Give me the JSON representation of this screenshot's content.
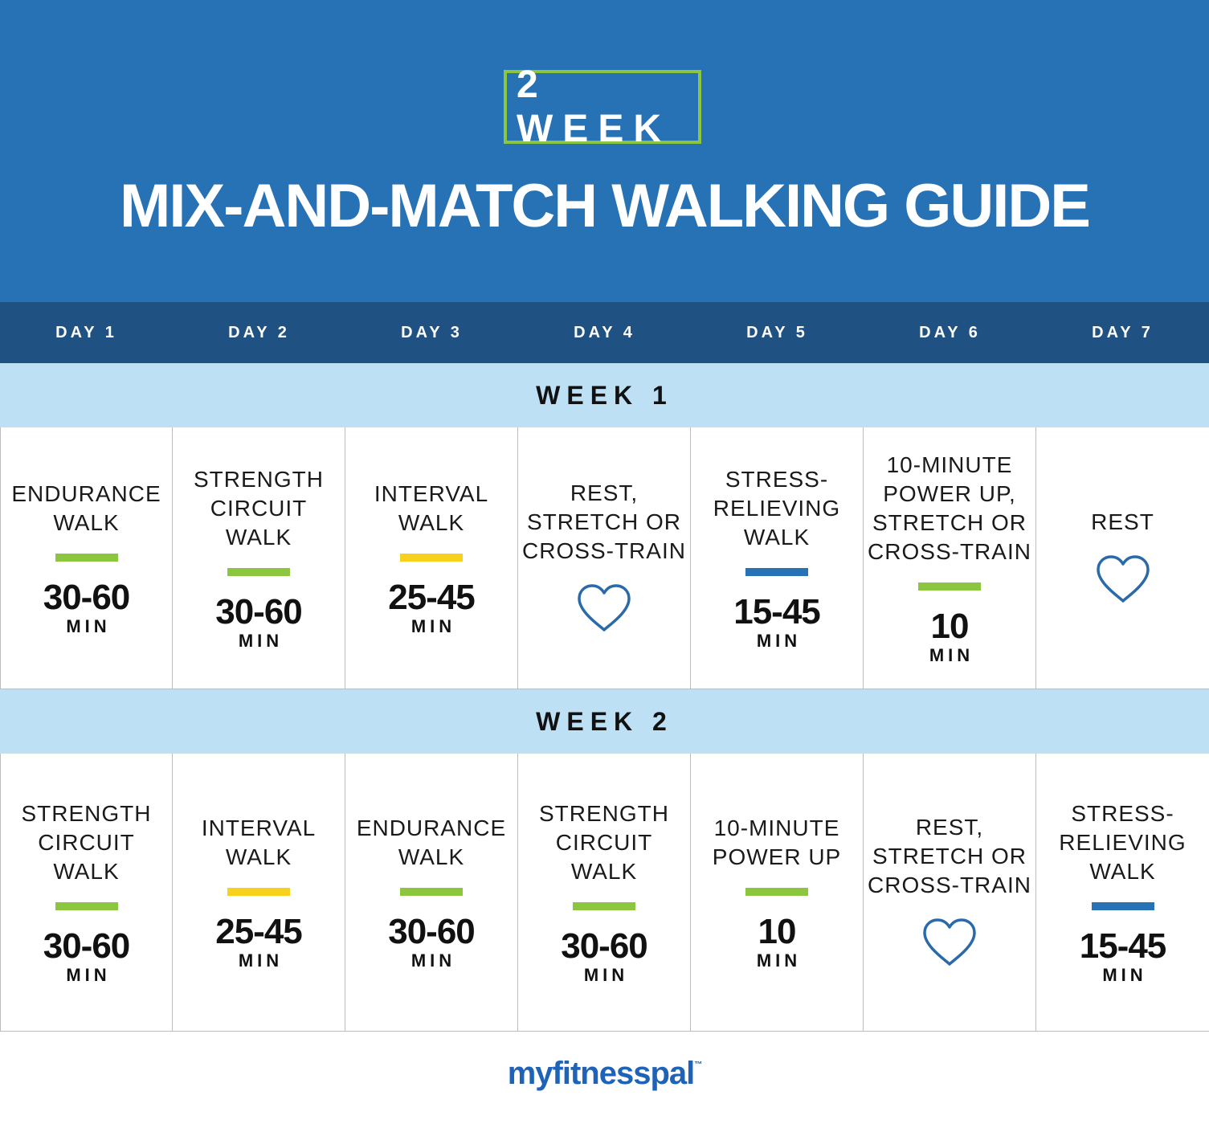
{
  "header": {
    "badge": "2 WEEK",
    "title": "MIX-AND-MATCH WALKING GUIDE"
  },
  "days": [
    "DAY 1",
    "DAY 2",
    "DAY 3",
    "DAY 4",
    "DAY 5",
    "DAY 6",
    "DAY 7"
  ],
  "colors": {
    "header_bg": "#2771b5",
    "dayrow_bg": "#1f5282",
    "week_bg": "#bde0f5",
    "green": "#8cc63f",
    "yellow": "#f7d11e",
    "blue": "#2771b5",
    "heart": "#2b6aa8"
  },
  "weeks": [
    {
      "label": "WEEK 1",
      "cells": [
        {
          "name": "ENDURANCE\nWALK",
          "bar": "green",
          "duration": "30-60",
          "unit": "MIN"
        },
        {
          "name": "STRENGTH\nCIRCUIT\nWALK",
          "bar": "green",
          "duration": "30-60",
          "unit": "MIN"
        },
        {
          "name": "INTERVAL\nWALK",
          "bar": "yellow",
          "duration": "25-45",
          "unit": "MIN"
        },
        {
          "name": "REST,\nSTRETCH OR\nCROSS-TRAIN",
          "icon": "heart-icon"
        },
        {
          "name": "STRESS-\nRELIEVING\nWALK",
          "bar": "blue",
          "duration": "15-45",
          "unit": "MIN"
        },
        {
          "name": "10-MINUTE\nPOWER UP,\nSTRETCH OR\nCROSS-TRAIN",
          "bar": "green",
          "duration": "10",
          "unit": "MIN"
        },
        {
          "name": "REST",
          "icon": "heart-icon"
        }
      ]
    },
    {
      "label": "WEEK 2",
      "cells": [
        {
          "name": "STRENGTH\nCIRCUIT\nWALK",
          "bar": "green",
          "duration": "30-60",
          "unit": "MIN"
        },
        {
          "name": "INTERVAL\nWALK",
          "bar": "yellow",
          "duration": "25-45",
          "unit": "MIN"
        },
        {
          "name": "ENDURANCE\nWALK",
          "bar": "green",
          "duration": "30-60",
          "unit": "MIN"
        },
        {
          "name": "STRENGTH\nCIRCUIT\nWALK",
          "bar": "green",
          "duration": "30-60",
          "unit": "MIN"
        },
        {
          "name": "10-MINUTE\nPOWER UP",
          "bar": "green",
          "duration": "10",
          "unit": "MIN"
        },
        {
          "name": "REST,\nSTRETCH OR\nCROSS-TRAIN",
          "icon": "heart-icon"
        },
        {
          "name": "STRESS-\nRELIEVING\nWALK",
          "bar": "blue",
          "duration": "15-45",
          "unit": "MIN"
        }
      ]
    }
  ],
  "footer": {
    "logo": "myfitnesspal",
    "trademark": "™"
  }
}
